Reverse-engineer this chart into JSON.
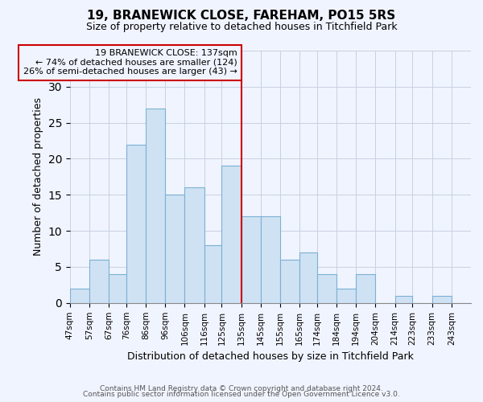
{
  "title": "19, BRANEWICK CLOSE, FAREHAM, PO15 5RS",
  "subtitle": "Size of property relative to detached houses in Titchfield Park",
  "xlabel": "Distribution of detached houses by size in Titchfield Park",
  "ylabel": "Number of detached properties",
  "bin_labels": [
    "47sqm",
    "57sqm",
    "67sqm",
    "76sqm",
    "86sqm",
    "96sqm",
    "106sqm",
    "116sqm",
    "125sqm",
    "135sqm",
    "145sqm",
    "155sqm",
    "165sqm",
    "174sqm",
    "184sqm",
    "194sqm",
    "204sqm",
    "214sqm",
    "223sqm",
    "233sqm",
    "243sqm"
  ],
  "bin_edges": [
    47,
    57,
    67,
    76,
    86,
    96,
    106,
    116,
    125,
    135,
    145,
    155,
    165,
    174,
    184,
    194,
    204,
    214,
    223,
    233,
    243,
    253
  ],
  "counts": [
    2,
    6,
    4,
    22,
    27,
    15,
    16,
    8,
    19,
    12,
    12,
    6,
    7,
    4,
    2,
    4,
    0,
    1,
    0,
    1,
    0
  ],
  "bar_color": "#cfe2f3",
  "bar_edge_color": "#7ab0d4",
  "reference_line_x": 135,
  "reference_line_color": "#cc0000",
  "annotation_box_text": "19 BRANEWICK CLOSE: 137sqm\n← 74% of detached houses are smaller (124)\n26% of semi-detached houses are larger (43) →",
  "annotation_box_color": "#cc0000",
  "annotation_text_fontsize": 8,
  "ylim": [
    0,
    35
  ],
  "yticks": [
    0,
    5,
    10,
    15,
    20,
    25,
    30,
    35
  ],
  "footer_line1": "Contains HM Land Registry data © Crown copyright and database right 2024.",
  "footer_line2": "Contains public sector information licensed under the Open Government Licence v3.0.",
  "bg_color": "#f0f4ff",
  "grid_color": "#c8d0e0",
  "title_fontsize": 11,
  "subtitle_fontsize": 9,
  "ylabel_fontsize": 9,
  "xlabel_fontsize": 9
}
